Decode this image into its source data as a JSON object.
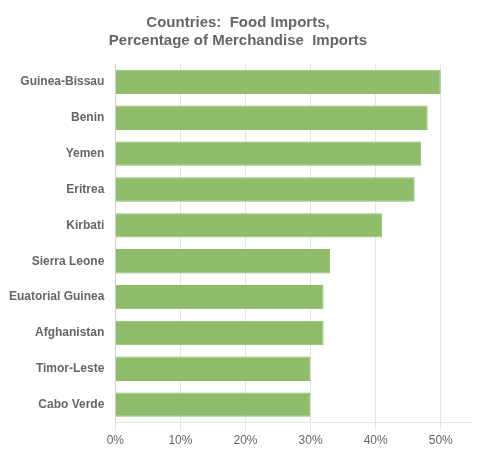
{
  "chart_data": {
    "type": "bar",
    "orientation": "horizontal",
    "title": "Countries:  Food Imports,\nPercentage of Merchandise  Imports",
    "categories": [
      "Cabo Verde",
      "Timor-Leste",
      "Afghanistan",
      "Euatorial Guinea",
      "Sierra Leone",
      "Kirbati",
      "Eritrea",
      "Yemen",
      "Benin",
      "Guinea-Bissau"
    ],
    "values": [
      0.3,
      0.3,
      0.32,
      0.32,
      0.33,
      0.41,
      0.46,
      0.47,
      0.48,
      0.5
    ],
    "color": "#8FBC6A",
    "xlim": [
      0,
      0.545
    ],
    "xticks": [
      {
        "value": 0.0,
        "label": "0%"
      },
      {
        "value": 0.1,
        "label": "10%"
      },
      {
        "value": 0.2,
        "label": "20%"
      },
      {
        "value": 0.3,
        "label": "30%"
      },
      {
        "value": 0.4,
        "label": "40%"
      },
      {
        "value": 0.5,
        "label": "50%"
      }
    ],
    "grid": true
  }
}
